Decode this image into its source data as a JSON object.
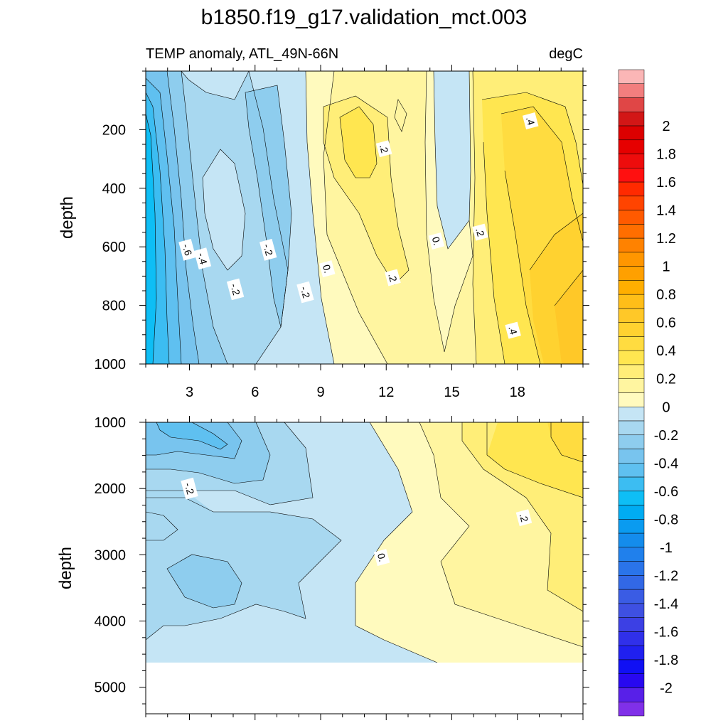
{
  "chart_data": {
    "type": "heatmap",
    "title": "b1850.f19_g17.validation_mct.003",
    "subtitle_left": "TEMP anomaly, ATL_49N-66N",
    "subtitle_right": "degC",
    "panels": [
      {
        "name": "upper",
        "ylabel": "depth",
        "xlim": [
          1,
          21
        ],
        "ylim": [
          0,
          1000
        ],
        "x_ticks": [
          "3",
          "6",
          "9",
          "12",
          "15",
          "18"
        ],
        "x_tick_values": [
          3,
          6,
          9,
          12,
          15,
          18
        ],
        "y_ticks": [
          "200",
          "400",
          "600",
          "800",
          "1000"
        ],
        "y_tick_values": [
          200,
          400,
          600,
          800,
          1000
        ],
        "contour_labels": [
          {
            "text": "-.6",
            "x": 2.9,
            "y": 610
          },
          {
            "text": "-.4",
            "x": 3.6,
            "y": 640
          },
          {
            "text": "-.2",
            "x": 5.1,
            "y": 745
          },
          {
            "text": "-.2",
            "x": 6.6,
            "y": 610
          },
          {
            "text": "-.2",
            "x": 8.3,
            "y": 755
          },
          {
            "text": "0.",
            "x": 9.3,
            "y": 675
          },
          {
            "text": ".2",
            "x": 11.9,
            "y": 265
          },
          {
            "text": ".2",
            "x": 12.3,
            "y": 705
          },
          {
            "text": "0.",
            "x": 14.3,
            "y": 580
          },
          {
            "text": ".2",
            "x": 16.3,
            "y": 550
          },
          {
            "text": ".4",
            "x": 18.6,
            "y": 170
          },
          {
            "text": ".4",
            "x": 17.8,
            "y": 885
          }
        ]
      },
      {
        "name": "lower",
        "ylabel": "depth",
        "xlim": [
          1,
          21
        ],
        "ylim": [
          1000,
          5400
        ],
        "y_ticks": [
          "1000",
          "2000",
          "3000",
          "4000",
          "5000"
        ],
        "y_tick_values": [
          1000,
          2000,
          3000,
          4000,
          5000
        ],
        "no_data_below": 4620,
        "contour_labels": [
          {
            "text": "-.2",
            "x": 3.0,
            "y": 2000
          },
          {
            "text": "0.",
            "x": 11.8,
            "y": 3040
          },
          {
            "text": ".2",
            "x": 18.3,
            "y": 2440
          }
        ]
      }
    ],
    "colorbar": {
      "labels": [
        "2",
        "1.8",
        "1.6",
        "1.4",
        "1.2",
        "1",
        "0.8",
        "0.6",
        "0.4",
        "0.2",
        "0",
        "-0.2",
        "-0.4",
        "-0.6",
        "-0.8",
        "-1",
        "-1.2",
        "-1.4",
        "-1.6",
        "-1.8",
        "-2"
      ],
      "label_values": [
        2,
        1.8,
        1.6,
        1.4,
        1.2,
        1,
        0.8,
        0.6,
        0.4,
        0.2,
        0,
        -0.2,
        -0.4,
        -0.6,
        -0.8,
        -1,
        -1.2,
        -1.4,
        -1.6,
        -1.8,
        -2
      ],
      "colors_top_to_bottom": [
        "#FBB6B6",
        "#F27E7E",
        "#E04646",
        "#D21616",
        "#DC0000",
        "#E60000",
        "#EE0C0C",
        "#FF1010",
        "#FF2A00",
        "#FF4400",
        "#FF5A00",
        "#FF6E00",
        "#FF8200",
        "#FF9600",
        "#FFA000",
        "#FFAE00",
        "#FFBE18",
        "#FFC828",
        "#FFD230",
        "#FFDC40",
        "#FFE650",
        "#FFEE78",
        "#FFF5A0",
        "#FFFABE",
        "#C5E5F5",
        "#A8D8F0",
        "#8ECDEE",
        "#78C4EE",
        "#5FC0F0",
        "#3CBDF2",
        "#0EBEF5",
        "#00ACF2",
        "#0A9BF0",
        "#148CEC",
        "#2080EC",
        "#2A74EA",
        "#3268E6",
        "#3A5CE4",
        "#3E50E2",
        "#3C40E4",
        "#3030EA",
        "#2020F0",
        "#1010F4",
        "#2808F0",
        "#5820E8",
        "#8030E8"
      ],
      "edge_values": [
        2.2,
        2.1,
        2.0,
        1.9,
        1.8,
        1.7,
        1.6,
        1.5,
        1.4,
        1.3,
        1.2,
        1.1,
        1.0,
        0.9,
        0.8,
        0.7,
        0.6,
        0.5,
        0.4,
        0.3,
        0.2,
        0.1,
        0.0
      ]
    },
    "colors": {
      "neg_02": "#C5E5F5",
      "neg_04": "#A8D8F0",
      "neg_06": "#8ECDEE",
      "neg_08": "#78C4EE",
      "neg_10": "#5FC0F0",
      "neg_12": "#3CBDF2",
      "neg_14": "#0EBEF5",
      "pos_00": "#FFFABE",
      "pos_02": "#FFF5A0",
      "pos_04": "#FFEE78",
      "pos_06": "#FFE650",
      "pos_08": "#FFDC40",
      "pos_10": "#FFD230",
      "pos_12": "#FFC828",
      "pos_14": "#FFBE18"
    }
  }
}
